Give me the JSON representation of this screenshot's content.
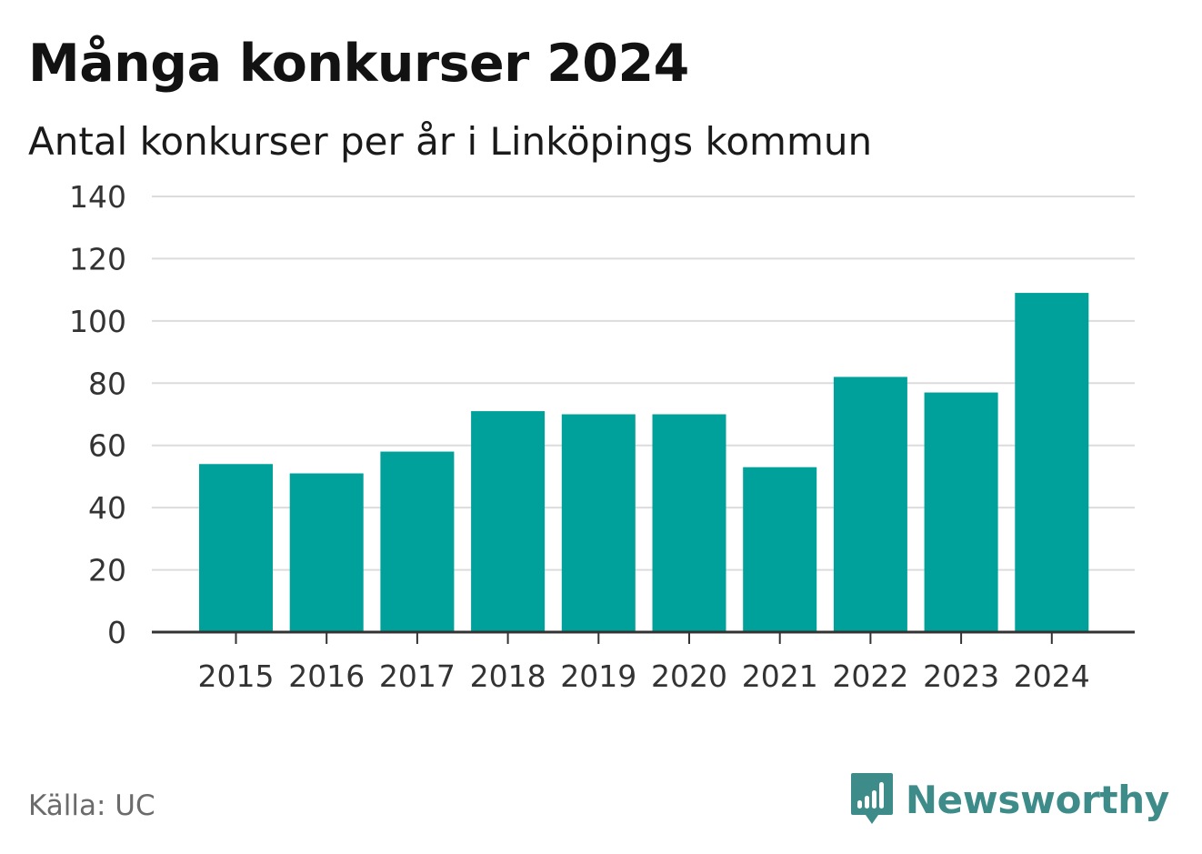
{
  "chart_data": {
    "type": "bar",
    "title": "Många konkurser 2024",
    "subtitle": "Antal konkurser per år i Linköpings kommun",
    "categories": [
      "2015",
      "2016",
      "2017",
      "2018",
      "2019",
      "2020",
      "2021",
      "2022",
      "2023",
      "2024"
    ],
    "values": [
      54,
      51,
      58,
      71,
      70,
      70,
      53,
      82,
      77,
      109
    ],
    "yticks": [
      "0",
      "20",
      "40",
      "60",
      "80",
      "100",
      "120",
      "140"
    ],
    "ylim": [
      0,
      140
    ],
    "xlabel": "",
    "ylabel": "",
    "grid": true,
    "bar_color": "#00a19a"
  },
  "footer": {
    "source": "Källa: UC",
    "brand": "Newsworthy",
    "brand_icon": "newsworthy-logo-icon",
    "brand_color": "#3e8c8a"
  }
}
